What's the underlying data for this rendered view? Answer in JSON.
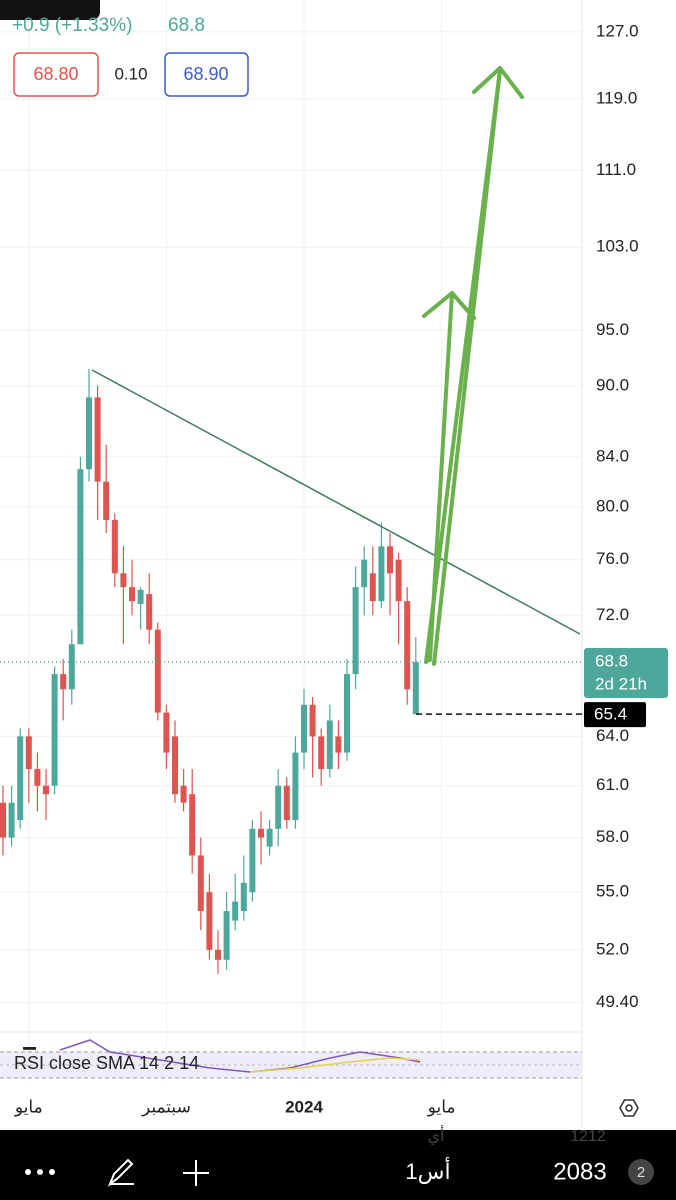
{
  "header": {
    "change": "+0.9 (+1.33%)",
    "last": "68.8",
    "bid": "68.80",
    "spread": "0.10",
    "ask": "68.90"
  },
  "chart_data": {
    "type": "candlestick",
    "categories": [
      null,
      null,
      null,
      "مايو",
      null,
      null,
      null,
      null,
      null,
      null,
      null,
      null,
      null,
      null,
      null,
      null,
      null,
      null,
      null,
      "سبتمبر",
      null,
      null,
      null,
      null,
      null,
      null,
      null,
      null,
      null,
      null,
      null,
      null,
      null,
      null,
      null,
      "2024",
      null,
      null,
      null,
      null,
      null,
      null,
      null,
      null,
      null,
      null,
      null,
      null,
      null,
      null,
      null,
      "مايو"
    ],
    "open": [
      60,
      58,
      59,
      64,
      62,
      61,
      61,
      68,
      67,
      70,
      83,
      89,
      82,
      79,
      75,
      74,
      72.8,
      73.5,
      71,
      65.5,
      64,
      61,
      60.5,
      57,
      55,
      52,
      51.5,
      53.5,
      54,
      55,
      58.5,
      57.5,
      58.5,
      61,
      59,
      63,
      66,
      64,
      62,
      64,
      63,
      68,
      74,
      75,
      73,
      77,
      76,
      73,
      65.4,
      null,
      null,
      null
    ],
    "high": [
      61,
      61,
      64.5,
      64.5,
      63,
      62,
      68.5,
      69,
      71,
      84,
      91.5,
      90,
      85,
      79.5,
      77,
      76,
      74,
      75,
      71.5,
      66,
      65,
      62,
      62,
      58,
      56,
      53,
      55,
      56,
      57,
      59,
      59.5,
      59,
      62,
      61.5,
      64,
      67,
      66.5,
      64.5,
      66,
      65,
      69,
      75.5,
      77,
      77,
      78.8,
      78,
      76.5,
      74,
      70.5,
      null,
      null,
      null
    ],
    "low": [
      57,
      57.5,
      58.5,
      60,
      59.5,
      59,
      60.5,
      65,
      66,
      70,
      82,
      79,
      78,
      74,
      70,
      72,
      71,
      70,
      65,
      62,
      60,
      59.5,
      56,
      53,
      51.5,
      50.8,
      51,
      53,
      53.5,
      54.5,
      56.5,
      57,
      57.5,
      58.5,
      58.5,
      62,
      61.5,
      61,
      61.5,
      62,
      62.5,
      67,
      72,
      72,
      72.5,
      72,
      70,
      66,
      65.4,
      null,
      null,
      null
    ],
    "close": [
      58,
      60,
      64,
      62,
      61,
      60.5,
      68,
      67,
      70,
      83,
      89,
      82,
      79,
      75,
      74,
      73,
      73.8,
      71,
      65.5,
      63,
      60.5,
      60,
      57,
      54,
      52,
      51.5,
      54,
      54.5,
      55.5,
      58.5,
      58,
      58.5,
      61,
      59,
      63,
      66,
      64,
      62,
      65,
      63,
      68,
      74,
      76,
      73,
      77,
      75,
      73,
      67,
      68.8,
      null,
      null,
      null
    ],
    "up_color": "#4da89b",
    "down_color": "#e0534f",
    "log_scale": true,
    "grid": true,
    "ylim": [
      48.1,
      131
    ],
    "yticks": [
      {
        "value": 127,
        "label": "127.0"
      },
      {
        "value": 119,
        "label": "119.0"
      },
      {
        "value": 111,
        "label": "111.0"
      },
      {
        "value": 103,
        "label": "103.0"
      },
      {
        "value": 95,
        "label": "95.0"
      },
      {
        "value": 90,
        "label": "90.0"
      },
      {
        "value": 84,
        "label": "84.0"
      },
      {
        "value": 80,
        "label": "80.0"
      },
      {
        "value": 76,
        "label": "76.0"
      },
      {
        "value": 72,
        "label": "72.0"
      },
      {
        "value": 64,
        "label": "64.0"
      },
      {
        "value": 61,
        "label": "61.0"
      },
      {
        "value": 58,
        "label": "58.0"
      },
      {
        "value": 55,
        "label": "55.0"
      },
      {
        "value": 52,
        "label": "52.0"
      },
      {
        "value": 49.4,
        "label": "49.40"
      }
    ],
    "current_price": 68.8,
    "countdown": "2d 21h",
    "low_marker": 65.4,
    "indicator": "RSI close SMA 14 2 14"
  },
  "toolbar": {
    "ghost_left": "أي",
    "ghost_right": "1212",
    "interval": "1أس",
    "count": "2083",
    "badge": "2"
  }
}
